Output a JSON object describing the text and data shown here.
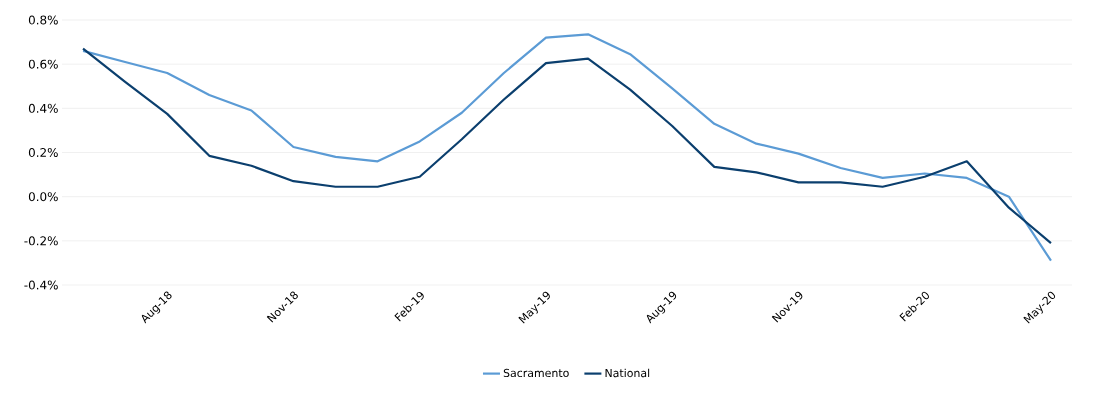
{
  "chart_data": {
    "type": "line",
    "categories": [
      null,
      null,
      "Aug-18",
      null,
      null,
      "Nov-18",
      null,
      null,
      "Feb-19",
      null,
      null,
      "May-19",
      null,
      null,
      "Aug-19",
      null,
      null,
      "Nov-19",
      null,
      null,
      "Feb-20",
      null,
      null,
      "May-20"
    ],
    "series": [
      {
        "name": "Sacramento",
        "color": "#5b9bd5",
        "values": [
          0.66,
          0.61,
          0.56,
          0.46,
          0.39,
          0.225,
          0.18,
          0.16,
          0.25,
          0.38,
          0.56,
          0.72,
          0.735,
          0.645,
          0.49,
          0.33,
          0.24,
          0.195,
          0.13,
          0.085,
          0.105,
          0.085,
          0.0,
          -0.29
        ]
      },
      {
        "name": "National",
        "color": "#0b3f6e",
        "values": [
          0.67,
          0.52,
          0.375,
          0.185,
          0.14,
          0.07,
          0.045,
          0.045,
          0.09,
          0.26,
          0.44,
          0.605,
          0.625,
          0.485,
          0.32,
          0.135,
          0.11,
          0.065,
          0.065,
          0.045,
          0.09,
          0.16,
          -0.05,
          -0.21
        ]
      }
    ],
    "ylim": [
      -0.4,
      0.8
    ],
    "yticks": [
      {
        "value": -0.4,
        "label": "-0.4%"
      },
      {
        "value": -0.2,
        "label": "-0.2%"
      },
      {
        "value": 0.0,
        "label": "0.0%"
      },
      {
        "value": 0.2,
        "label": "0.2%"
      },
      {
        "value": 0.4,
        "label": "0.4%"
      },
      {
        "value": 0.6,
        "label": "0.6%"
      },
      {
        "value": 0.8,
        "label": "0.8%"
      }
    ],
    "grid": "y",
    "legend": "bottom",
    "marker": "none",
    "line_style": "solid"
  }
}
